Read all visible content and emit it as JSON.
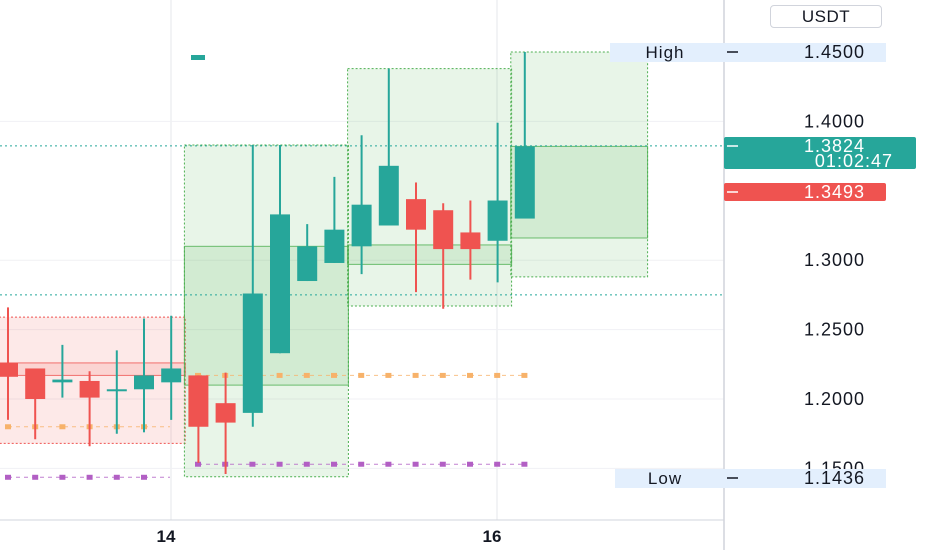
{
  "quote_currency": "USDT",
  "colors": {
    "up": "#26a69a",
    "down": "#ef5350",
    "box_green": "#4caf50",
    "box_red": "#ef5350",
    "orange_dots": "#f7b26a",
    "purple_dots": "#b25fc4",
    "badge_high_low": "#e3effd",
    "grid": "#e5e7eb"
  },
  "chart_data": {
    "type": "candlestick",
    "x_tick_labels": [
      "14",
      "16"
    ],
    "y_tick_labels": [
      "1.4000",
      "1.3000",
      "1.2500",
      "1.2000",
      "1.1500"
    ],
    "y_range": [
      1.12,
      1.46
    ],
    "high": {
      "label": "High",
      "value": "1.4500"
    },
    "low": {
      "label": "Low",
      "value": "1.1436"
    },
    "last_price": {
      "value": "1.3824",
      "countdown": "01:02:47"
    },
    "other_price": {
      "value": "1.3493"
    },
    "candles": [
      {
        "o": 1.226,
        "h": 1.266,
        "l": 1.185,
        "c": 1.216
      },
      {
        "o": 1.222,
        "h": 1.222,
        "l": 1.171,
        "c": 1.2
      },
      {
        "o": 1.212,
        "h": 1.239,
        "l": 1.201,
        "c": 1.214
      },
      {
        "o": 1.213,
        "h": 1.22,
        "l": 1.166,
        "c": 1.201
      },
      {
        "o": 1.207,
        "h": 1.235,
        "l": 1.175,
        "c": 1.207
      },
      {
        "o": 1.207,
        "h": 1.258,
        "l": 1.176,
        "c": 1.217
      },
      {
        "o": 1.212,
        "h": 1.26,
        "l": 1.185,
        "c": 1.222
      },
      {
        "o": 1.217,
        "h": 1.217,
        "l": 1.154,
        "c": 1.18
      },
      {
        "o": 1.197,
        "h": 1.219,
        "l": 1.146,
        "c": 1.183
      },
      {
        "o": 1.19,
        "h": 1.383,
        "l": 1.18,
        "c": 1.276
      },
      {
        "o": 1.233,
        "h": 1.383,
        "l": 1.233,
        "c": 1.333
      },
      {
        "o": 1.285,
        "h": 1.326,
        "l": 1.285,
        "c": 1.31
      },
      {
        "o": 1.298,
        "h": 1.36,
        "l": 1.298,
        "c": 1.322
      },
      {
        "o": 1.31,
        "h": 1.39,
        "l": 1.29,
        "c": 1.34
      },
      {
        "o": 1.325,
        "h": 1.438,
        "l": 1.325,
        "c": 1.368
      },
      {
        "o": 1.344,
        "h": 1.356,
        "l": 1.277,
        "c": 1.322
      },
      {
        "o": 1.336,
        "h": 1.341,
        "l": 1.265,
        "c": 1.308
      },
      {
        "o": 1.32,
        "h": 1.343,
        "l": 1.286,
        "c": 1.308
      },
      {
        "o": 1.314,
        "h": 1.399,
        "l": 1.284,
        "c": 1.343
      },
      {
        "o": 1.33,
        "h": 1.45,
        "l": 1.33,
        "c": 1.382
      }
    ],
    "boxes": [
      {
        "color": "red",
        "from": 0,
        "to": 6,
        "high": 1.259,
        "low": 1.168,
        "open": 1.226,
        "close": 1.217
      },
      {
        "color": "green",
        "from": 7,
        "to": 12,
        "high": 1.383,
        "low": 1.144,
        "open": 1.31,
        "close": 1.21
      },
      {
        "color": "green",
        "from": 13,
        "to": 18,
        "high": 1.438,
        "low": 1.267,
        "open": 1.297,
        "close": 1.311
      },
      {
        "color": "green",
        "from": 19,
        "to": 23,
        "high": 1.45,
        "low": 1.288,
        "open": 1.316,
        "close": 1.382
      }
    ],
    "orange_level": 1.217,
    "purple_level": 1.153,
    "red_box_low_line": 1.18,
    "grid": true
  }
}
